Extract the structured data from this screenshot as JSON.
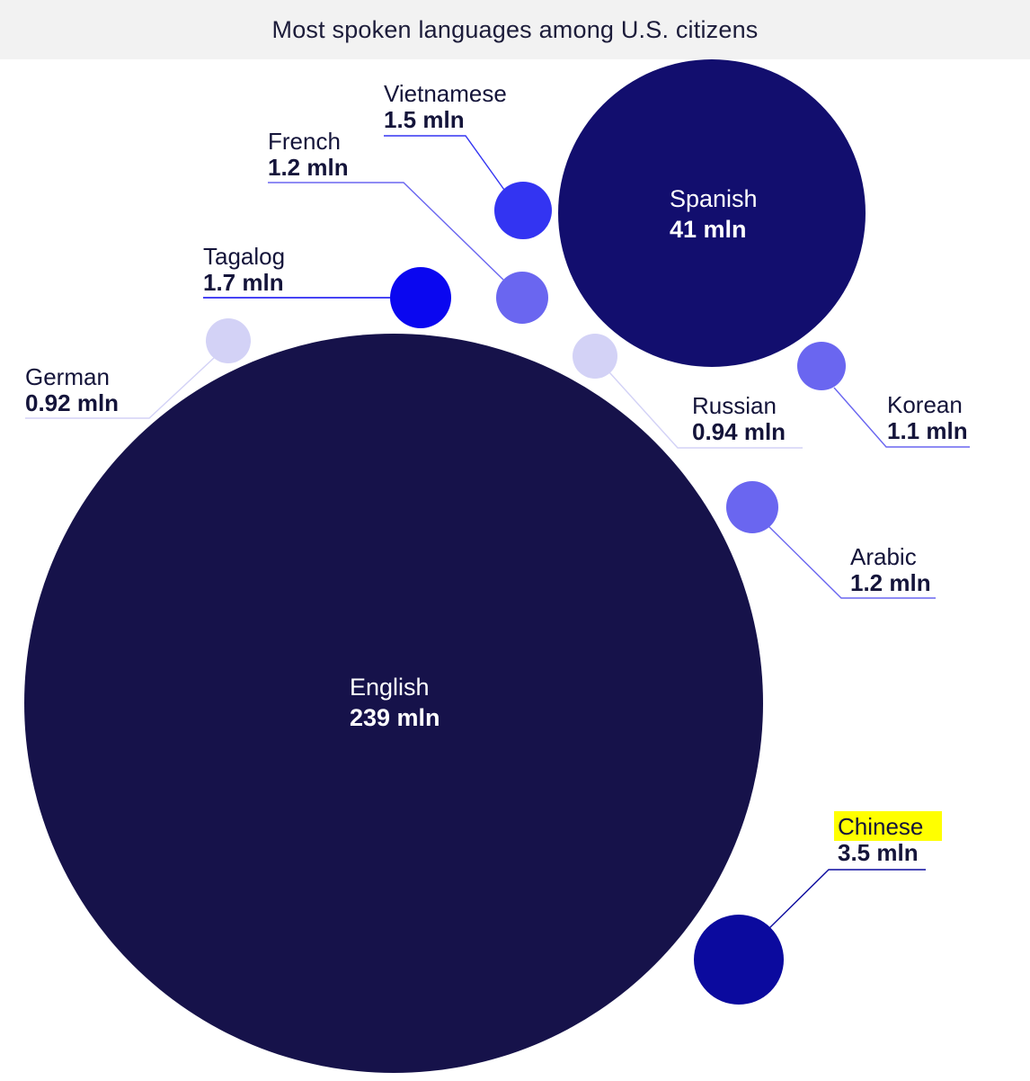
{
  "title": "Most spoken languages among U.S. citizens",
  "chart_data": {
    "type": "bubble",
    "title": "Most spoken languages among U.S. citizens",
    "unit": "mln",
    "items": [
      {
        "key": "english",
        "name": "English",
        "value": 239,
        "value_label": "239 mln",
        "color": "#16124a"
      },
      {
        "key": "spanish",
        "name": "Spanish",
        "value": 41,
        "value_label": "41 mln",
        "color": "#120e6e"
      },
      {
        "key": "chinese",
        "name": "Chinese",
        "value": 3.5,
        "value_label": "3.5 mln",
        "color": "#0b0a9e",
        "highlighted": true
      },
      {
        "key": "tagalog",
        "name": "Tagalog",
        "value": 1.7,
        "value_label": "1.7 mln",
        "color": "#0a07f0"
      },
      {
        "key": "vietnamese",
        "name": "Vietnamese",
        "value": 1.5,
        "value_label": "1.5 mln",
        "color": "#3334f2"
      },
      {
        "key": "french",
        "name": "French",
        "value": 1.2,
        "value_label": "1.2 mln",
        "color": "#6a66f0"
      },
      {
        "key": "arabic",
        "name": "Arabic",
        "value": 1.2,
        "value_label": "1.2 mln",
        "color": "#6a66f0"
      },
      {
        "key": "korean",
        "name": "Korean",
        "value": 1.1,
        "value_label": "1.1 mln",
        "color": "#6a66f0"
      },
      {
        "key": "russian",
        "name": "Russian",
        "value": 0.94,
        "value_label": "0.94 mln",
        "color": "#d3d2f6"
      },
      {
        "key": "german",
        "name": "German",
        "value": 0.92,
        "value_label": "0.92 mln",
        "color": "#d3d2f6"
      }
    ],
    "highlight_color": "#ffff00"
  }
}
